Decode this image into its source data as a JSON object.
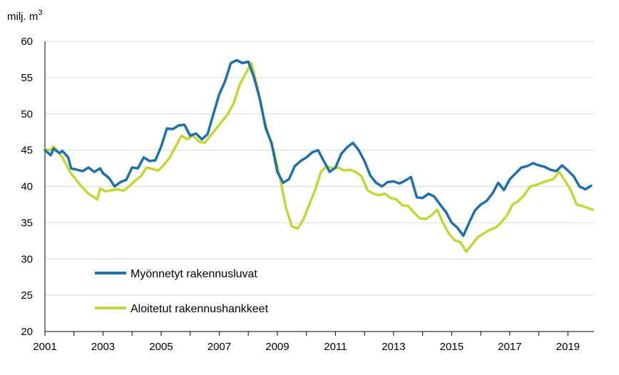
{
  "chart_data": {
    "type": "line",
    "title": "",
    "ylabel": "milj. m",
    "ylabel_superscript": "3",
    "xlabel": "",
    "ylim": [
      20,
      60
    ],
    "xlim": [
      2001,
      2019.9
    ],
    "yticks": [
      20,
      25,
      30,
      35,
      40,
      45,
      50,
      55,
      60
    ],
    "xticks": [
      2001,
      2003,
      2005,
      2007,
      2009,
      2011,
      2013,
      2015,
      2017,
      2019
    ],
    "grid": "horizontal",
    "legend_position": "bottom-left",
    "series": [
      {
        "name": "Myönnetyt rakennusluvat",
        "color": "#1f6fab",
        "points": [
          [
            2001.0,
            45.0
          ],
          [
            2001.2,
            44.3
          ],
          [
            2001.3,
            45.2
          ],
          [
            2001.5,
            44.6
          ],
          [
            2001.6,
            44.9
          ],
          [
            2001.8,
            44.0
          ],
          [
            2001.9,
            42.5
          ],
          [
            2002.1,
            42.3
          ],
          [
            2002.3,
            42.1
          ],
          [
            2002.5,
            42.6
          ],
          [
            2002.7,
            42.0
          ],
          [
            2002.9,
            42.5
          ],
          [
            2003.0,
            41.8
          ],
          [
            2003.2,
            41.2
          ],
          [
            2003.4,
            40.0
          ],
          [
            2003.6,
            40.6
          ],
          [
            2003.8,
            40.9
          ],
          [
            2004.0,
            42.6
          ],
          [
            2004.2,
            42.5
          ],
          [
            2004.4,
            44.0
          ],
          [
            2004.6,
            43.5
          ],
          [
            2004.8,
            43.6
          ],
          [
            2005.0,
            45.5
          ],
          [
            2005.2,
            48.0
          ],
          [
            2005.4,
            47.9
          ],
          [
            2005.6,
            48.4
          ],
          [
            2005.8,
            48.5
          ],
          [
            2006.0,
            47.0
          ],
          [
            2006.2,
            47.3
          ],
          [
            2006.4,
            46.5
          ],
          [
            2006.6,
            47.2
          ],
          [
            2006.8,
            50.0
          ],
          [
            2007.0,
            52.7
          ],
          [
            2007.2,
            54.5
          ],
          [
            2007.4,
            57.0
          ],
          [
            2007.6,
            57.4
          ],
          [
            2007.8,
            57.0
          ],
          [
            2008.0,
            57.2
          ],
          [
            2008.2,
            55.0
          ],
          [
            2008.4,
            52.0
          ],
          [
            2008.6,
            48.0
          ],
          [
            2008.8,
            46.0
          ],
          [
            2009.0,
            42.0
          ],
          [
            2009.2,
            40.5
          ],
          [
            2009.4,
            41.0
          ],
          [
            2009.6,
            42.8
          ],
          [
            2009.8,
            43.5
          ],
          [
            2010.0,
            44.0
          ],
          [
            2010.2,
            44.7
          ],
          [
            2010.4,
            45.0
          ],
          [
            2010.6,
            43.5
          ],
          [
            2010.8,
            42.0
          ],
          [
            2011.0,
            42.6
          ],
          [
            2011.2,
            44.5
          ],
          [
            2011.4,
            45.4
          ],
          [
            2011.6,
            46.0
          ],
          [
            2011.8,
            45.0
          ],
          [
            2012.0,
            43.5
          ],
          [
            2012.2,
            41.5
          ],
          [
            2012.4,
            40.5
          ],
          [
            2012.6,
            40.0
          ],
          [
            2012.8,
            40.6
          ],
          [
            2013.0,
            40.7
          ],
          [
            2013.2,
            40.4
          ],
          [
            2013.4,
            40.8
          ],
          [
            2013.6,
            41.3
          ],
          [
            2013.8,
            38.5
          ],
          [
            2014.0,
            38.4
          ],
          [
            2014.2,
            39.0
          ],
          [
            2014.4,
            38.6
          ],
          [
            2014.6,
            37.5
          ],
          [
            2014.8,
            36.5
          ],
          [
            2015.0,
            35.0
          ],
          [
            2015.2,
            34.3
          ],
          [
            2015.4,
            33.2
          ],
          [
            2015.6,
            35.0
          ],
          [
            2015.8,
            36.7
          ],
          [
            2016.0,
            37.5
          ],
          [
            2016.2,
            38.0
          ],
          [
            2016.4,
            39.0
          ],
          [
            2016.6,
            40.5
          ],
          [
            2016.8,
            39.5
          ],
          [
            2017.0,
            41.0
          ],
          [
            2017.2,
            41.8
          ],
          [
            2017.4,
            42.6
          ],
          [
            2017.6,
            42.8
          ],
          [
            2017.8,
            43.2
          ],
          [
            2018.0,
            42.9
          ],
          [
            2018.2,
            42.7
          ],
          [
            2018.4,
            42.3
          ],
          [
            2018.6,
            42.1
          ],
          [
            2018.8,
            42.9
          ],
          [
            2019.0,
            42.2
          ],
          [
            2019.2,
            41.4
          ],
          [
            2019.4,
            40.0
          ],
          [
            2019.6,
            39.6
          ],
          [
            2019.8,
            40.1
          ]
        ]
      },
      {
        "name": "Aloitetut rakennushankkeet",
        "color": "#c4d633",
        "points": [
          [
            2001.0,
            45.1
          ],
          [
            2001.2,
            45.0
          ],
          [
            2001.3,
            45.5
          ],
          [
            2001.5,
            44.5
          ],
          [
            2001.6,
            44.0
          ],
          [
            2001.8,
            42.5
          ],
          [
            2001.9,
            41.8
          ],
          [
            2002.1,
            40.8
          ],
          [
            2002.3,
            39.8
          ],
          [
            2002.5,
            39.0
          ],
          [
            2002.7,
            38.5
          ],
          [
            2002.8,
            38.2
          ],
          [
            2002.9,
            39.7
          ],
          [
            2003.1,
            39.3
          ],
          [
            2003.3,
            39.5
          ],
          [
            2003.5,
            39.6
          ],
          [
            2003.7,
            39.4
          ],
          [
            2003.9,
            40.0
          ],
          [
            2004.1,
            40.8
          ],
          [
            2004.3,
            41.4
          ],
          [
            2004.5,
            42.6
          ],
          [
            2004.7,
            42.4
          ],
          [
            2004.9,
            42.2
          ],
          [
            2005.1,
            43.0
          ],
          [
            2005.3,
            44.0
          ],
          [
            2005.5,
            45.5
          ],
          [
            2005.7,
            47.0
          ],
          [
            2005.9,
            46.5
          ],
          [
            2006.1,
            47.0
          ],
          [
            2006.3,
            46.2
          ],
          [
            2006.5,
            46.0
          ],
          [
            2006.7,
            47.0
          ],
          [
            2006.9,
            48.0
          ],
          [
            2007.1,
            49.0
          ],
          [
            2007.3,
            50.0
          ],
          [
            2007.5,
            51.5
          ],
          [
            2007.7,
            54.0
          ],
          [
            2007.9,
            55.5
          ],
          [
            2008.1,
            57.0
          ],
          [
            2008.3,
            54.0
          ],
          [
            2008.5,
            50.0
          ],
          [
            2008.7,
            47.0
          ],
          [
            2008.9,
            44.5
          ],
          [
            2009.1,
            41.0
          ],
          [
            2009.3,
            37.0
          ],
          [
            2009.5,
            34.5
          ],
          [
            2009.7,
            34.2
          ],
          [
            2009.9,
            35.5
          ],
          [
            2010.1,
            37.5
          ],
          [
            2010.3,
            39.5
          ],
          [
            2010.5,
            42.0
          ],
          [
            2010.7,
            42.8
          ],
          [
            2010.9,
            42.5
          ],
          [
            2011.1,
            42.6
          ],
          [
            2011.3,
            42.2
          ],
          [
            2011.5,
            42.3
          ],
          [
            2011.7,
            42.0
          ],
          [
            2011.9,
            41.4
          ],
          [
            2012.1,
            39.5
          ],
          [
            2012.3,
            39.0
          ],
          [
            2012.5,
            38.8
          ],
          [
            2012.7,
            39.0
          ],
          [
            2012.9,
            38.4
          ],
          [
            2013.1,
            38.2
          ],
          [
            2013.3,
            37.4
          ],
          [
            2013.5,
            37.3
          ],
          [
            2013.7,
            36.4
          ],
          [
            2013.9,
            35.6
          ],
          [
            2014.1,
            35.5
          ],
          [
            2014.3,
            36.0
          ],
          [
            2014.5,
            36.8
          ],
          [
            2014.7,
            35.0
          ],
          [
            2014.9,
            33.5
          ],
          [
            2015.1,
            32.6
          ],
          [
            2015.3,
            32.3
          ],
          [
            2015.5,
            31.0
          ],
          [
            2015.7,
            32.0
          ],
          [
            2015.9,
            33.0
          ],
          [
            2016.1,
            33.5
          ],
          [
            2016.3,
            34.0
          ],
          [
            2016.5,
            34.3
          ],
          [
            2016.7,
            35.0
          ],
          [
            2016.9,
            36.0
          ],
          [
            2017.1,
            37.5
          ],
          [
            2017.3,
            38.0
          ],
          [
            2017.5,
            38.8
          ],
          [
            2017.7,
            40.0
          ],
          [
            2017.9,
            40.2
          ],
          [
            2018.1,
            40.5
          ],
          [
            2018.3,
            40.8
          ],
          [
            2018.5,
            41.0
          ],
          [
            2018.7,
            42.0
          ],
          [
            2018.9,
            40.8
          ],
          [
            2019.1,
            39.5
          ],
          [
            2019.3,
            37.5
          ],
          [
            2019.5,
            37.3
          ],
          [
            2019.7,
            37.0
          ],
          [
            2019.85,
            36.8
          ]
        ]
      }
    ]
  }
}
